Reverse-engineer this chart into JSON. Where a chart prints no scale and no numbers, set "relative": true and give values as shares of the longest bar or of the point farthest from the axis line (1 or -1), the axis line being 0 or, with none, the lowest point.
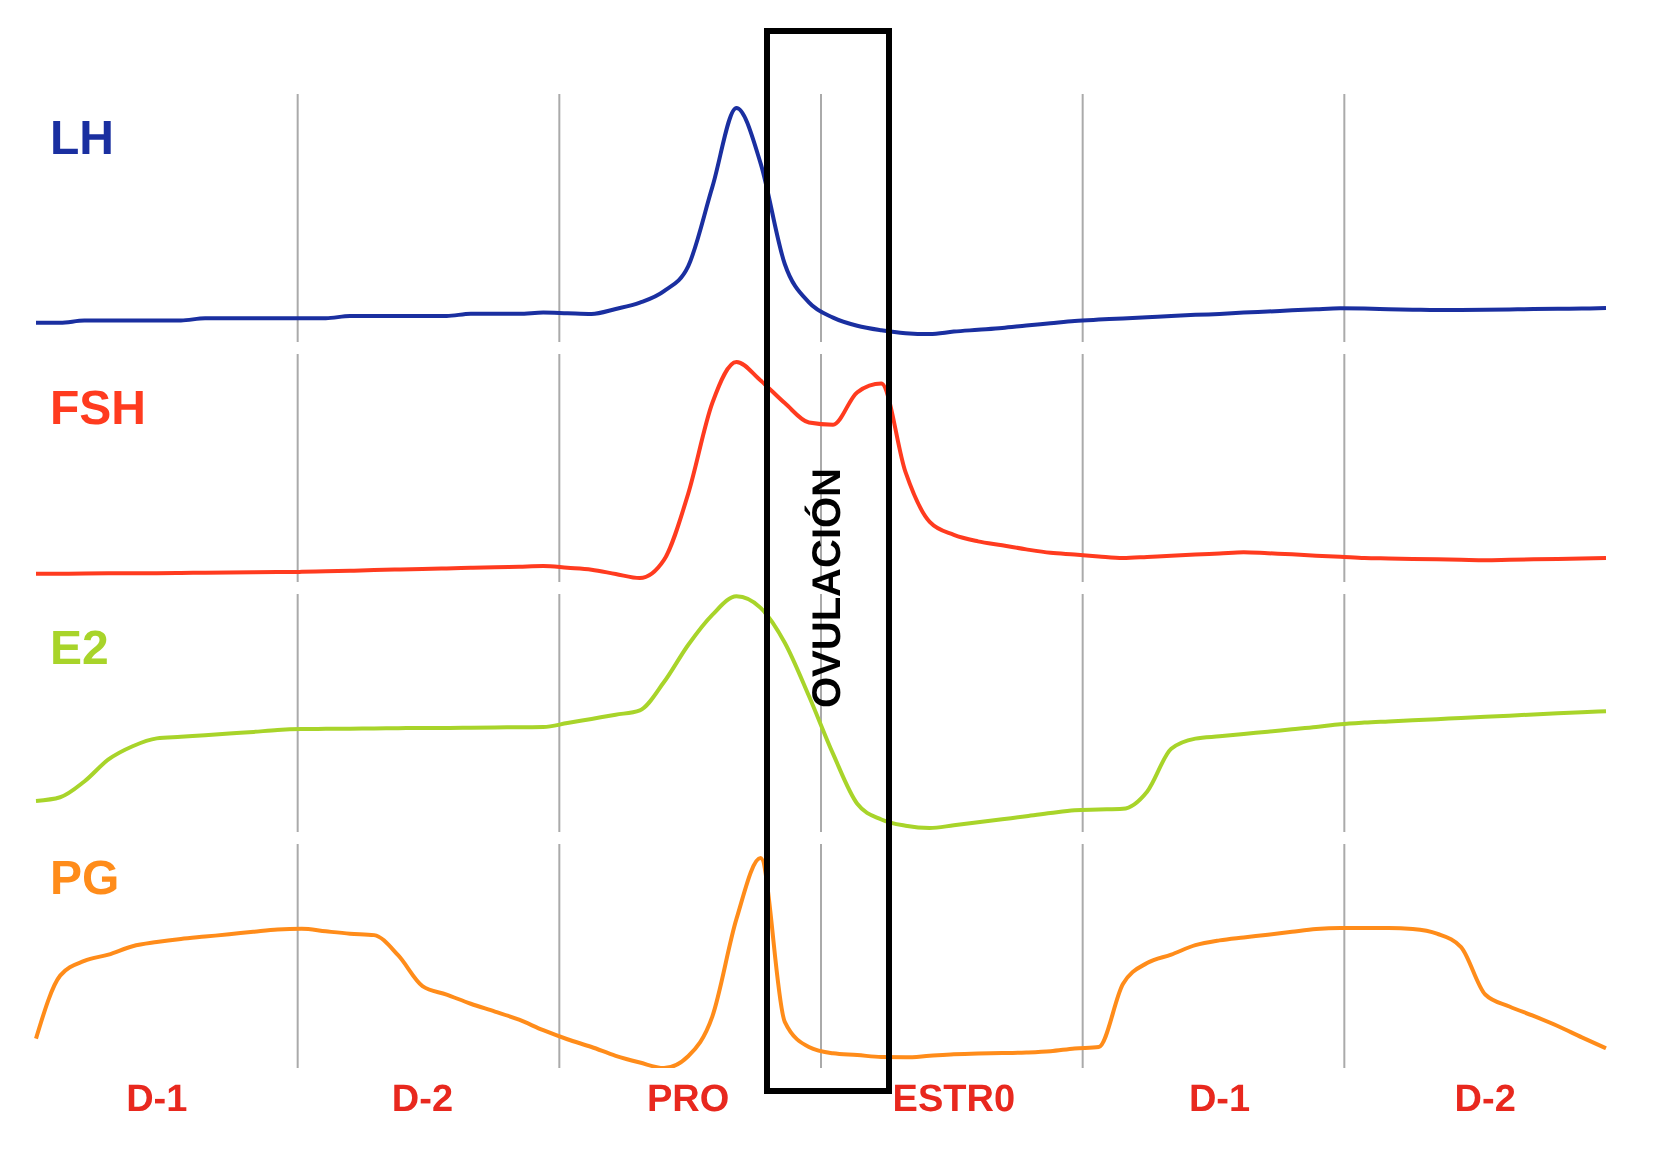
{
  "chart_data": [
    {
      "type": "line",
      "relative": true,
      "categories": [
        null,
        null,
        null,
        null,
        null,
        null,
        null,
        null,
        null,
        null,
        null,
        null,
        null,
        null,
        null,
        null,
        null,
        null,
        null,
        null,
        null,
        null,
        null,
        null,
        null,
        null,
        null,
        null,
        null,
        null,
        null,
        null,
        null,
        null,
        null,
        null,
        null,
        null,
        null,
        null,
        null,
        null,
        null,
        null,
        null,
        null,
        null,
        null,
        null,
        null,
        null,
        null,
        null,
        null,
        null,
        null,
        null,
        null,
        null,
        null,
        null,
        null,
        null,
        null,
        null,
        null
      ],
      "grid": "x",
      "marker": "none",
      "series": [
        {
          "name": "LH",
          "color": "#1a2fa0",
          "values": [
            0.05,
            0.05,
            0.06,
            0.06,
            0.06,
            0.06,
            0.06,
            0.07,
            0.07,
            0.07,
            0.07,
            0.07,
            0.07,
            0.08,
            0.08,
            0.08,
            0.08,
            0.08,
            0.09,
            0.09,
            0.09,
            0.095,
            0.092,
            0.089,
            0.111,
            0.139,
            0.19,
            0.3,
            0.65,
            1,
            0.755,
            0.31,
            0.14,
            0.073,
            0.037,
            0.017,
            0.004,
            0,
            0.011,
            0.019,
            0.027,
            0.038,
            0.048,
            0.058,
            0.064,
            0.069,
            0.074,
            0.08,
            0.085,
            0.089,
            0.095,
            0.1,
            0.105,
            0.11,
            0.114,
            0.113,
            0.11,
            0.108,
            0.106,
            0.107,
            0.108,
            0.109,
            0.111,
            0.112,
            0.113,
            0.115
          ]
        }
      ]
    },
    {
      "type": "line",
      "relative": true,
      "categories": [
        null,
        null,
        null,
        null,
        null,
        null,
        null,
        null,
        null,
        null,
        null,
        null,
        null,
        null,
        null,
        null,
        null,
        null,
        null,
        null,
        null,
        null,
        null,
        null,
        null,
        null,
        null,
        null,
        null,
        null,
        null,
        null,
        null,
        null,
        null,
        null,
        null,
        null,
        null,
        null,
        null,
        null,
        null,
        null,
        null,
        null,
        null,
        null,
        null,
        null,
        null,
        null,
        null,
        null,
        null,
        null,
        null,
        null,
        null,
        null,
        null,
        null,
        null,
        null,
        null,
        null
      ],
      "grid": "x",
      "marker": "none",
      "annotations": [
        "OVULACIÓN"
      ],
      "series": [
        {
          "name": "FSH",
          "color": "#ff3b1f",
          "values": [
            0.02,
            0.02,
            0.021,
            0.022,
            0.023,
            0.023,
            0.024,
            0.025,
            0.026,
            0.027,
            0.028,
            0.029,
            0.032,
            0.034,
            0.037,
            0.04,
            0.042,
            0.045,
            0.048,
            0.05,
            0.053,
            0.056,
            0.048,
            0.039,
            0.019,
            0,
            0.084,
            0.39,
            0.81,
            1,
            0.914,
            0.81,
            0.72,
            0.71,
            0.86,
            0.9,
            0.49,
            0.26,
            0.2,
            0.17,
            0.152,
            0.133,
            0.117,
            0.109,
            0.1,
            0.093,
            0.098,
            0.104,
            0.109,
            0.114,
            0.12,
            0.115,
            0.11,
            0.104,
            0.099,
            0.093,
            0.091,
            0.089,
            0.087,
            0.085,
            0.083,
            0.085,
            0.087,
            0.089,
            0.091,
            0.093
          ]
        }
      ]
    },
    {
      "type": "line",
      "relative": true,
      "categories": [
        null,
        null,
        null,
        null,
        null,
        null,
        null,
        null,
        null,
        null,
        null,
        null,
        null,
        null,
        null,
        null,
        null,
        null,
        null,
        null,
        null,
        null,
        null,
        null,
        null,
        null,
        null,
        null,
        null,
        null,
        null,
        null,
        null,
        null,
        null,
        null,
        null,
        null,
        null,
        null,
        null,
        null,
        null,
        null,
        null,
        null,
        null,
        null,
        null,
        null,
        null,
        null,
        null,
        null,
        null,
        null,
        null,
        null,
        null,
        null,
        null,
        null,
        null,
        null,
        null,
        null
      ],
      "grid": "x",
      "marker": "none",
      "series": [
        {
          "name": "E2",
          "color": "#a8d42a",
          "values": [
            0.117,
            0.133,
            0.201,
            0.296,
            0.353,
            0.387,
            0.394,
            0.401,
            0.408,
            0.415,
            0.423,
            0.427,
            0.428,
            0.429,
            0.43,
            0.431,
            0.432,
            0.432,
            0.433,
            0.434,
            0.435,
            0.436,
            0.453,
            0.471,
            0.489,
            0.508,
            0.63,
            0.79,
            0.92,
            1,
            0.95,
            0.8,
            0.57,
            0.32,
            0.105,
            0.037,
            0.01,
            0,
            0.012,
            0.025,
            0.038,
            0.051,
            0.065,
            0.077,
            0.08,
            0.083,
            0.157,
            0.342,
            0.386,
            0.396,
            0.406,
            0.416,
            0.426,
            0.436,
            0.448,
            0.455,
            0.46,
            0.465,
            0.47,
            0.475,
            0.48,
            0.485,
            0.49,
            0.495,
            0.5,
            0.504
          ]
        }
      ]
    },
    {
      "type": "line",
      "relative": true,
      "categories": [
        null,
        null,
        null,
        null,
        null,
        "D-1",
        null,
        null,
        null,
        null,
        null,
        null,
        null,
        null,
        null,
        null,
        "D-2",
        null,
        null,
        null,
        null,
        null,
        null,
        null,
        null,
        null,
        null,
        "PRO",
        null,
        null,
        null,
        null,
        null,
        null,
        null,
        null,
        null,
        null,
        "ESTR0",
        null,
        null,
        null,
        null,
        null,
        null,
        null,
        null,
        null,
        null,
        "D-1",
        null,
        null,
        null,
        null,
        null,
        null,
        null,
        null,
        null,
        null,
        "D-2",
        null,
        null,
        null,
        null,
        null
      ],
      "grid": "x",
      "marker": "none",
      "series": [
        {
          "name": "PG",
          "color": "#ff8c1a",
          "values": [
            0.14,
            0.44,
            0.51,
            0.54,
            0.58,
            0.6,
            0.615,
            0.626,
            0.637,
            0.649,
            0.66,
            0.663,
            0.651,
            0.64,
            0.633,
            0.536,
            0.39,
            0.35,
            0.306,
            0.269,
            0.23,
            0.18,
            0.137,
            0.1,
            0.058,
            0.026,
            0,
            0.056,
            0.245,
            0.71,
            1,
            0.22,
            0.1,
            0.07,
            0.062,
            0.052,
            0.051,
            0.058,
            0.065,
            0.069,
            0.071,
            0.074,
            0.08,
            0.093,
            0.1,
            0.4,
            0.5,
            0.54,
            0.585,
            0.608,
            0.622,
            0.635,
            0.649,
            0.662,
            0.667,
            0.667,
            0.667,
            0.662,
            0.64,
            0.576,
            0.35,
            0.293,
            0.248,
            0.2,
            0.146,
            0.094
          ]
        }
      ]
    }
  ]
}
